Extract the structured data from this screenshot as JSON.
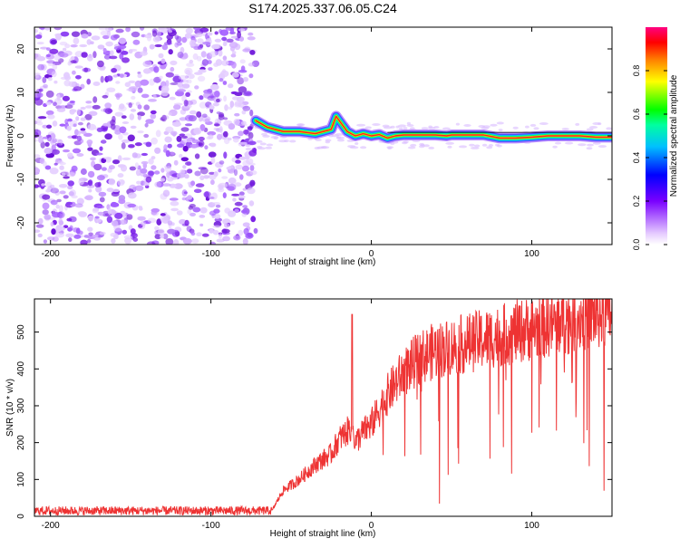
{
  "title": "S174.2025.337.06.05.C24",
  "chart_data": [
    {
      "type": "heatmap",
      "xlabel": "Height of straight line (km)",
      "ylabel": "Frequency (Hz)",
      "xlim": [
        -210,
        150
      ],
      "ylim": [
        -25,
        25
      ],
      "xticks": [
        -200,
        -100,
        0,
        100
      ],
      "yticks": [
        -20,
        -10,
        0,
        10,
        20
      ],
      "colorbar": {
        "label": "Normalized spectral amplitude",
        "range": [
          0,
          1
        ],
        "ticks": [
          0.0,
          0.2,
          0.4,
          0.6,
          0.8
        ],
        "tick_labels": [
          "0.0",
          "0.2",
          "0.4",
          "0.6",
          "0.8"
        ]
      },
      "noise_region": {
        "x_from": -210,
        "x_to": -72
      },
      "signal_trace": {
        "x": [
          -72,
          -65,
          -55,
          -45,
          -35,
          -25,
          -22,
          -18,
          -15,
          -10,
          -5,
          0,
          5,
          10,
          15,
          20,
          30,
          40,
          47,
          50,
          60,
          70,
          80,
          90,
          100,
          110,
          120,
          130,
          140,
          150
        ],
        "freq": [
          3.5,
          2.0,
          1.0,
          1.0,
          0.5,
          1.5,
          4.5,
          2.5,
          1.0,
          0.0,
          0.5,
          0.0,
          0.3,
          -0.5,
          0.0,
          0.2,
          0.2,
          0.2,
          0.0,
          0.2,
          0.2,
          0.2,
          -0.5,
          -0.5,
          -0.3,
          0.0,
          0.0,
          0.0,
          -0.3,
          -0.3
        ]
      }
    },
    {
      "type": "line",
      "xlabel": "Height of straight line (km)",
      "ylabel": "SNR (10 * v/v)",
      "xlim": [
        -210,
        150
      ],
      "ylim": [
        0,
        590
      ],
      "xticks": [
        -200,
        -100,
        0,
        100
      ],
      "yticks": [
        0,
        100,
        200,
        300,
        400,
        500
      ],
      "series": [
        {
          "name": "SNR",
          "color": "#ee3333",
          "x": [
            -210,
            -150,
            -100,
            -70,
            -62,
            -55,
            -45,
            -35,
            -25,
            -20,
            -15,
            -12,
            -10,
            -5,
            0,
            10,
            20,
            30,
            40,
            50,
            60,
            70,
            80,
            90,
            100,
            110,
            120,
            130,
            140,
            150
          ],
          "y": [
            15,
            15,
            15,
            15,
            15,
            70,
            100,
            140,
            170,
            210,
            230,
            250,
            200,
            230,
            250,
            330,
            390,
            430,
            450,
            460,
            470,
            480,
            490,
            500,
            510,
            520,
            530,
            540,
            545,
            550
          ],
          "spike_x": -12,
          "spike_y": 548
        }
      ]
    }
  ]
}
